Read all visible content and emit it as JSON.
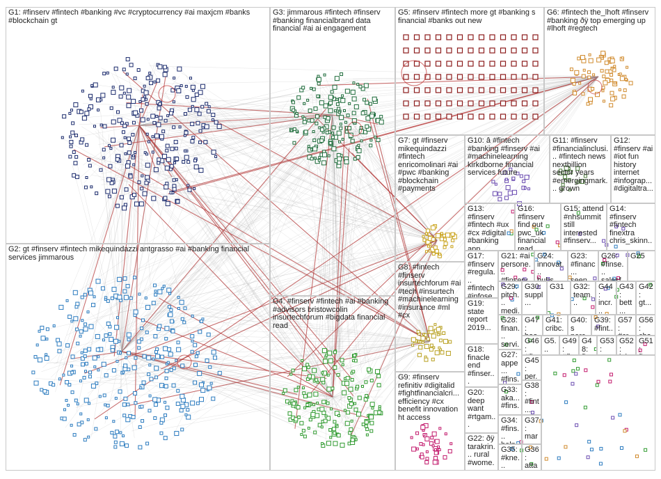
{
  "groups": [
    {
      "id": "G1",
      "label": "G1: #finserv #fintech #banking #vc #cryptocurrency #ai maxjcm #banks #blockchain gt",
      "color": "#1a2a6c"
    },
    {
      "id": "G2",
      "label": "G2: gt #finserv #fintech mikequindazzi antgrasso #ai #banking financial services jimmarous",
      "color": "#2b7bbf"
    },
    {
      "id": "G3",
      "label": "G3: jimmarous #fintech #finserv #banking financialbrand data financial #ai ai engagement",
      "color": "#1d6b3a"
    },
    {
      "id": "G4",
      "label": "G4: #finserv #fintech #ai #banking #advisors bristowcolin insurtechforum #bigdata financial read",
      "color": "#2f9a2f"
    },
    {
      "id": "G5",
      "label": "G5: #finserv #fintech more gt #banking s financial #banks out new",
      "color": "#8b1a1a"
    },
    {
      "id": "G6",
      "label": "G6: #fintech the_lhoft #finserv #banking ðÿ top emerging up #lhoft #regtech",
      "color": "#d08a2c"
    },
    {
      "id": "G7",
      "label": "G7: gt #finserv mikequindazzi #fintech enricomolinari #ai #pwc #banking #blockchain #payments",
      "color": "#c9a21a"
    },
    {
      "id": "G8",
      "label": "G8: #fintech #finserv insurtechforum #ai #tech #insurtech #machinelearning #insurance #ml #cx",
      "color": "#b8a020"
    },
    {
      "id": "G9",
      "label": "G9: #finserv refinitiv #digitalid #fightfinancialcri... efficiency #cx benefit innovation ht access",
      "color": "#c2186b"
    },
    {
      "id": "G10",
      "label": "G10: â #fintech #banking #finserv #ai #machinelearning kirkdborne financial services future",
      "color": "#6a4bb0"
    },
    {
      "id": "G11",
      "label": "G11: #finserv #financialinclusi... #fintech news nextbillion sector years #emergingmark... grown",
      "color": "#4a7a3a"
    },
    {
      "id": "G12",
      "label": "G12: #finserv #ai #iot fun history internet #infograp... #digitaltra...",
      "color": "#7a5a2a"
    },
    {
      "id": "G13",
      "label": "G13: #finserv #fintech #ux #cx #digital #banking app #payments...",
      "color": "#3a3aa0"
    },
    {
      "id": "G16",
      "label": "G16: #finserv find out pwc_uk financial read more...",
      "color": "#3a7a7a"
    },
    {
      "id": "G15",
      "label": "G15: attend #nhsummit still interested #finserv...",
      "color": "#7a3a7a"
    },
    {
      "id": "G14",
      "label": "G14: #finserv #fintech finextra chris_skinn...",
      "color": "#3a5a7a"
    },
    {
      "id": "G17",
      "label": "G17: #finserv #regula... #fintech #infose...",
      "color": "#5a5a5a"
    },
    {
      "id": "G21",
      "label": "G21: #ai persone... #finserv...",
      "color": "#5a5a5a"
    },
    {
      "id": "G24",
      "label": "G24: innovat... hubs...",
      "color": "#5a5a5a"
    },
    {
      "id": "G23",
      "label": "G23: #financ... seen...",
      "color": "#5a5a5a"
    },
    {
      "id": "G26",
      "label": "G26: #finse... salesf...",
      "color": "#5a5a5a"
    },
    {
      "id": "G25",
      "label": "G25",
      "color": "#5a5a5a"
    },
    {
      "id": "G19",
      "label": "G19: state report 2019...",
      "color": "#5a5a5a"
    },
    {
      "id": "G29",
      "label": "G29: pitch... medi...",
      "color": "#5a5a5a"
    },
    {
      "id": "G30",
      "label": "G30: suppl...",
      "color": "#5a5a5a"
    },
    {
      "id": "G31",
      "label": "G31",
      "color": "#5a5a5a"
    },
    {
      "id": "G32",
      "label": "G32: team...",
      "color": "#5a5a5a"
    },
    {
      "id": "G44",
      "label": "G44: incr...",
      "color": "#5a5a5a"
    },
    {
      "id": "G43",
      "label": "G43: bett...",
      "color": "#5a5a5a"
    },
    {
      "id": "G42",
      "label": "G42: gt...",
      "color": "#5a5a5a"
    },
    {
      "id": "G28",
      "label": "G28: finan... servi...",
      "color": "#5a5a5a"
    },
    {
      "id": "G47",
      "label": "G47: hoo...",
      "color": "#5a5a5a"
    },
    {
      "id": "G41",
      "label": "G41: cribc...",
      "color": "#5a5a5a"
    },
    {
      "id": "G40",
      "label": "G40: s perce...",
      "color": "#5a5a5a"
    },
    {
      "id": "G39",
      "label": "G39: #fint...",
      "color": "#5a5a5a"
    },
    {
      "id": "G57",
      "label": "G57: #cr...",
      "color": "#5a5a5a"
    },
    {
      "id": "G56",
      "label": "G56: cha...",
      "color": "#5a5a5a"
    },
    {
      "id": "G18",
      "label": "G18: finacle end #finser...",
      "color": "#5a5a5a"
    },
    {
      "id": "G46",
      "label": "G46: #fin...",
      "color": "#5a5a5a"
    },
    {
      "id": "G5x1",
      "label": "G5... se...",
      "color": "#5a5a5a"
    },
    {
      "id": "G49",
      "label": "G49: #fin...",
      "color": "#5a5a5a"
    },
    {
      "id": "G48",
      "label": "G48: fin...",
      "color": "#5a5a5a"
    },
    {
      "id": "G53",
      "label": "G53: ove...",
      "color": "#5a5a5a"
    },
    {
      "id": "G52",
      "label": "G52: join...",
      "color": "#5a5a5a"
    },
    {
      "id": "G51",
      "label": "G51: fina...",
      "color": "#5a5a5a"
    },
    {
      "id": "G27",
      "label": "G27: appe... #fins...",
      "color": "#5a5a5a"
    },
    {
      "id": "G45",
      "label": "G45: per...",
      "color": "#5a5a5a"
    },
    {
      "id": "G20",
      "label": "G20: deep want #rtgam...",
      "color": "#5a5a5a"
    },
    {
      "id": "G33",
      "label": "G33: aka... #fins...",
      "color": "#5a5a5a"
    },
    {
      "id": "G38",
      "label": "G38: #fint...",
      "color": "#5a5a5a"
    },
    {
      "id": "G34",
      "label": "G34: #fins... help...",
      "color": "#5a5a5a"
    },
    {
      "id": "G37",
      "label": "G37: mar...",
      "color": "#5a5a5a"
    },
    {
      "id": "G22",
      "label": "G22: ðÿ tarakrin... rural #wome...",
      "color": "#5a5a5a"
    },
    {
      "id": "G35",
      "label": "G35: #kne... #sub...",
      "color": "#5a5a5a"
    },
    {
      "id": "G36",
      "label": "G36: atta...",
      "color": "#5a5a5a"
    }
  ]
}
